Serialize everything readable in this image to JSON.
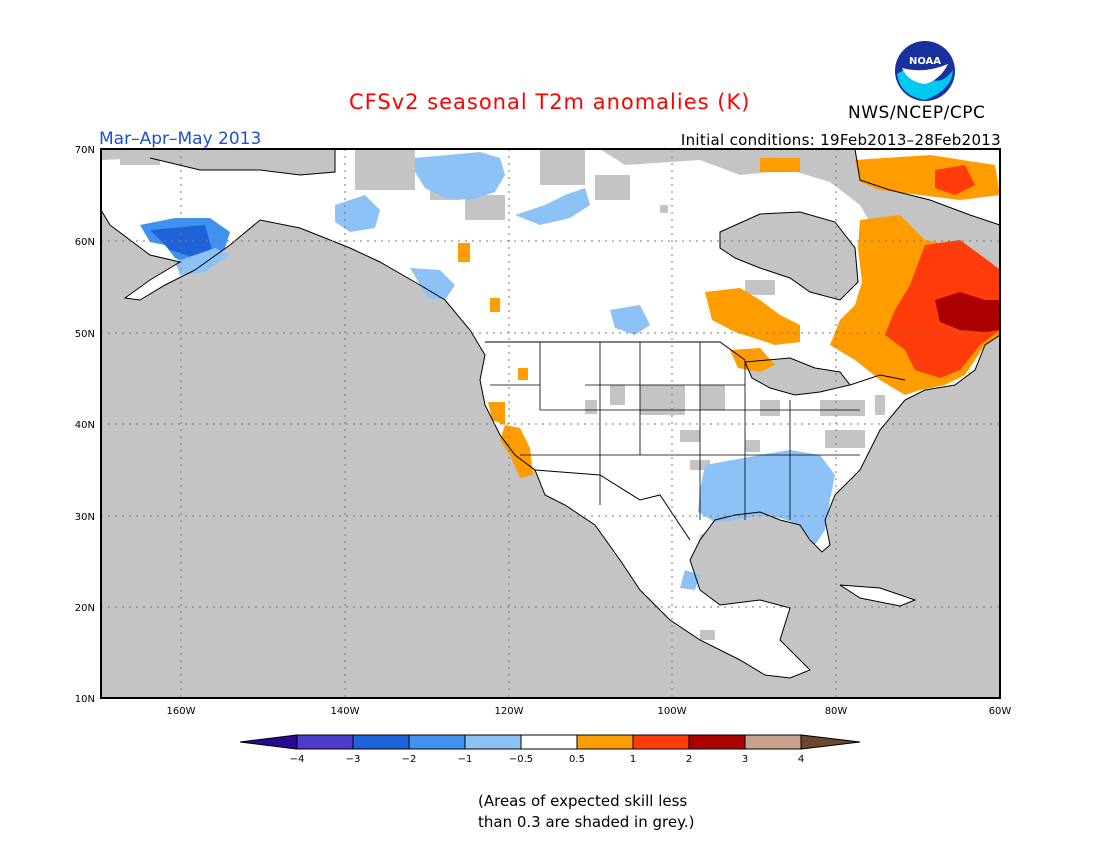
{
  "header": {
    "title": "CFSv2 seasonal T2m anomalies (K)",
    "title_color": "#ff0000",
    "period": "Mar–Apr–May 2013",
    "period_color": "#1e50d0",
    "initial_conditions": "Initial conditions: 19Feb2013–28Feb2013",
    "org": "NWS/NCEP/CPC",
    "logo_text": "NOAA"
  },
  "map": {
    "lat_ticks": [
      "70N",
      "60N",
      "50N",
      "40N",
      "30N",
      "20N",
      "10N"
    ],
    "lon_ticks": [
      "160W",
      "140W",
      "120W",
      "100W",
      "80W",
      "60W"
    ],
    "grid": "dotted",
    "colors": {
      "ocean": "#c4c4c4",
      "land": "#ffffff",
      "grey_mask": "#c4c4c4"
    },
    "anomaly_regions": [
      {
        "name": "western-alaska",
        "category": -2
      },
      {
        "name": "northern-canada",
        "category": -1
      },
      {
        "name": "southeast-us",
        "category": -1
      },
      {
        "name": "southwest-us",
        "category": 0.5
      },
      {
        "name": "hudson-bay",
        "category": 0.5
      },
      {
        "name": "labrador-quebec",
        "category": 1
      },
      {
        "name": "newfoundland",
        "category": 2
      },
      {
        "name": "baffin",
        "category": 1
      }
    ]
  },
  "colorbar": {
    "labels": [
      "−4",
      "−3",
      "−2",
      "−1",
      "−0.5",
      "0.5",
      "1",
      "2",
      "3",
      "4"
    ],
    "colors": [
      "#2a0896",
      "#4b3ccc",
      "#1f63d8",
      "#4192ee",
      "#8dc2f6",
      "#ffffff",
      "#ff9c00",
      "#ff3c0a",
      "#aa0000",
      "#c8a08c",
      "#6e4632"
    ]
  },
  "footnote": {
    "line1": "(Areas of expected skill less",
    "line2": "than 0.3 are shaded in grey.)"
  }
}
